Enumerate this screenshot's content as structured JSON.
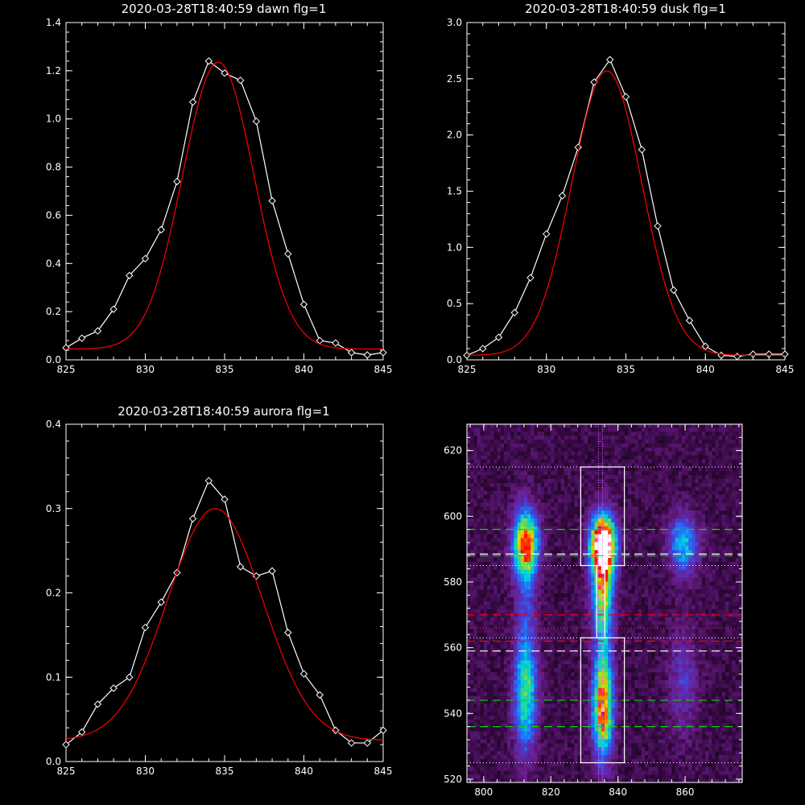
{
  "chart_data": [
    {
      "type": "line",
      "title": "2020-03-28T18:40:59 dawn flg=1",
      "xlabel": "",
      "ylabel": "",
      "xlim": [
        825,
        845
      ],
      "ylim": [
        0,
        1.4
      ],
      "xticks": [
        825,
        830,
        835,
        840,
        845
      ],
      "yticks": [
        0.0,
        0.2,
        0.4,
        0.6,
        0.8,
        1.0,
        1.2,
        1.4
      ],
      "ytick_labels": [
        "0.0",
        "0.2",
        "0.4",
        "0.6",
        "0.8",
        "1.0",
        "1.2",
        "1.4"
      ],
      "series": [
        {
          "color": "#ffffff",
          "marker": "diamond",
          "x": [
            825,
            826,
            827,
            828,
            829,
            830,
            831,
            832,
            833,
            834,
            835,
            836,
            837,
            838,
            839,
            840,
            841,
            842,
            843,
            844,
            845
          ],
          "y": [
            0.05,
            0.09,
            0.12,
            0.21,
            0.35,
            0.42,
            0.54,
            0.74,
            1.07,
            1.24,
            1.19,
            1.16,
            0.99,
            0.66,
            0.44,
            0.23,
            0.08,
            0.07,
            0.03,
            0.02,
            0.03
          ]
        },
        {
          "color": "#ff0000",
          "marker": "none",
          "gauss": {
            "a": 1.19,
            "mu": 834.6,
            "sigma": 2.25,
            "b": 0.045
          }
        }
      ]
    },
    {
      "type": "line",
      "title": "2020-03-28T18:40:59 dusk flg=1",
      "xlabel": "",
      "ylabel": "",
      "xlim": [
        825,
        845
      ],
      "ylim": [
        0,
        3.0
      ],
      "xticks": [
        825,
        830,
        835,
        840,
        845
      ],
      "yticks": [
        0.0,
        0.5,
        1.0,
        1.5,
        2.0,
        2.5,
        3.0
      ],
      "ytick_labels": [
        "0.0",
        "0.5",
        "1.0",
        "1.5",
        "2.0",
        "2.5",
        "3.0"
      ],
      "series": [
        {
          "color": "#ffffff",
          "marker": "diamond",
          "x": [
            825,
            826,
            827,
            828,
            829,
            830,
            831,
            832,
            833,
            834,
            835,
            836,
            837,
            838,
            839,
            840,
            841,
            842,
            843,
            844,
            845
          ],
          "y": [
            0.04,
            0.1,
            0.2,
            0.42,
            0.73,
            1.12,
            1.46,
            1.89,
            2.47,
            2.67,
            2.34,
            1.87,
            1.19,
            0.62,
            0.35,
            0.12,
            0.04,
            0.03,
            0.05,
            0.05,
            0.05
          ]
        },
        {
          "color": "#ff0000",
          "marker": "none",
          "gauss": {
            "a": 2.53,
            "mu": 833.8,
            "sigma": 2.2,
            "b": 0.04
          }
        }
      ]
    },
    {
      "type": "line",
      "title": "2020-03-28T18:40:59 aurora flg=1",
      "xlabel": "",
      "ylabel": "",
      "xlim": [
        825,
        845
      ],
      "ylim": [
        0,
        0.4
      ],
      "xticks": [
        825,
        830,
        835,
        840,
        845
      ],
      "yticks": [
        0.0,
        0.1,
        0.2,
        0.3,
        0.4
      ],
      "ytick_labels": [
        "0.0",
        "0.1",
        "0.2",
        "0.3",
        "0.4"
      ],
      "series": [
        {
          "color": "#ffffff",
          "marker": "diamond",
          "x": [
            825,
            826,
            827,
            828,
            829,
            830,
            831,
            832,
            833,
            834,
            835,
            836,
            837,
            838,
            839,
            840,
            841,
            842,
            843,
            844,
            845
          ],
          "y": [
            0.02,
            0.035,
            0.068,
            0.087,
            0.1,
            0.159,
            0.189,
            0.224,
            0.288,
            0.333,
            0.311,
            0.231,
            0.22,
            0.226,
            0.153,
            0.104,
            0.079,
            0.037,
            0.022,
            0.022,
            0.037
          ]
        },
        {
          "color": "#ff0000",
          "marker": "none",
          "gauss": {
            "a": 0.275,
            "mu": 834.4,
            "sigma": 3.0,
            "b": 0.025
          }
        }
      ]
    },
    {
      "type": "heatmap",
      "title": "",
      "xlabel": "",
      "ylabel": "",
      "xlim": [
        795,
        877
      ],
      "ylim": [
        519,
        628
      ],
      "xticks": [
        800,
        820,
        840,
        860
      ],
      "yticks": [
        520,
        540,
        560,
        580,
        600,
        620
      ],
      "colormap": [
        "#000000",
        "#3a0a46",
        "#6a1e8c",
        "#4a3cd0",
        "#1e78ff",
        "#00d2dc",
        "#3cdc78",
        "#dcdc00",
        "#ff5000",
        "#ff0000",
        "#ffffff"
      ],
      "blobs": [
        {
          "x": 812,
          "y": 591,
          "sx": 2.6,
          "sy": 7,
          "amp": 0.72
        },
        {
          "x": 812,
          "y": 545,
          "sx": 2.4,
          "sy": 12,
          "amp": 0.4
        },
        {
          "x": 835,
          "y": 591,
          "sx": 2.6,
          "sy": 6,
          "amp": 1.0
        },
        {
          "x": 835,
          "y": 540,
          "sx": 2.2,
          "sy": 10,
          "amp": 0.62
        },
        {
          "x": 835,
          "y": 565,
          "sx": 2.0,
          "sy": 18,
          "amp": 0.3
        },
        {
          "x": 835,
          "y": 578,
          "sx": 2.4,
          "sy": 8,
          "amp": 0.35
        },
        {
          "x": 859,
          "y": 591,
          "sx": 3,
          "sy": 6,
          "amp": 0.4
        },
        {
          "x": 859,
          "y": 550,
          "sx": 3,
          "sy": 12,
          "amp": 0.16
        },
        {
          "x": 812,
          "y": 568,
          "sx": 2.2,
          "sy": 20,
          "amp": 0.16
        }
      ],
      "overlays": {
        "boxes": [
          {
            "x0": 828.9,
            "x1": 841.9,
            "y0": 585,
            "y1": 615,
            "color": "#ffffff"
          },
          {
            "x0": 828.9,
            "x1": 841.9,
            "y0": 525,
            "y1": 563,
            "color": "#ffffff"
          },
          {
            "x0": 833.7,
            "x1": 836.1,
            "y0": 563,
            "y1": 585,
            "color": "#ffffff"
          }
        ],
        "dotted_h": [
          {
            "y": 615,
            "color": "#ffffff"
          },
          {
            "y": 585,
            "color": "#ffffff"
          },
          {
            "y": 563,
            "color": "#ffffff"
          },
          {
            "y": 525,
            "color": "#ffffff"
          },
          {
            "y": 566,
            "color": "#ff3030"
          }
        ],
        "dashed_h": [
          {
            "y": 596,
            "color": "#00dd00"
          },
          {
            "y": 588,
            "color": "#00dd00"
          },
          {
            "y": 588.5,
            "color": "#ffffff"
          },
          {
            "y": 570,
            "color": "#ff0000"
          },
          {
            "y": 562,
            "color": "#ff0000"
          },
          {
            "y": 559,
            "color": "#ffffff"
          },
          {
            "y": 544,
            "color": "#00dd00"
          },
          {
            "y": 536,
            "color": "#00dd00"
          }
        ],
        "dotted_v": [
          {
            "x": 834.2,
            "color": "#cc66ff"
          },
          {
            "x": 835.4,
            "color": "#cc66ff"
          }
        ]
      }
    }
  ]
}
